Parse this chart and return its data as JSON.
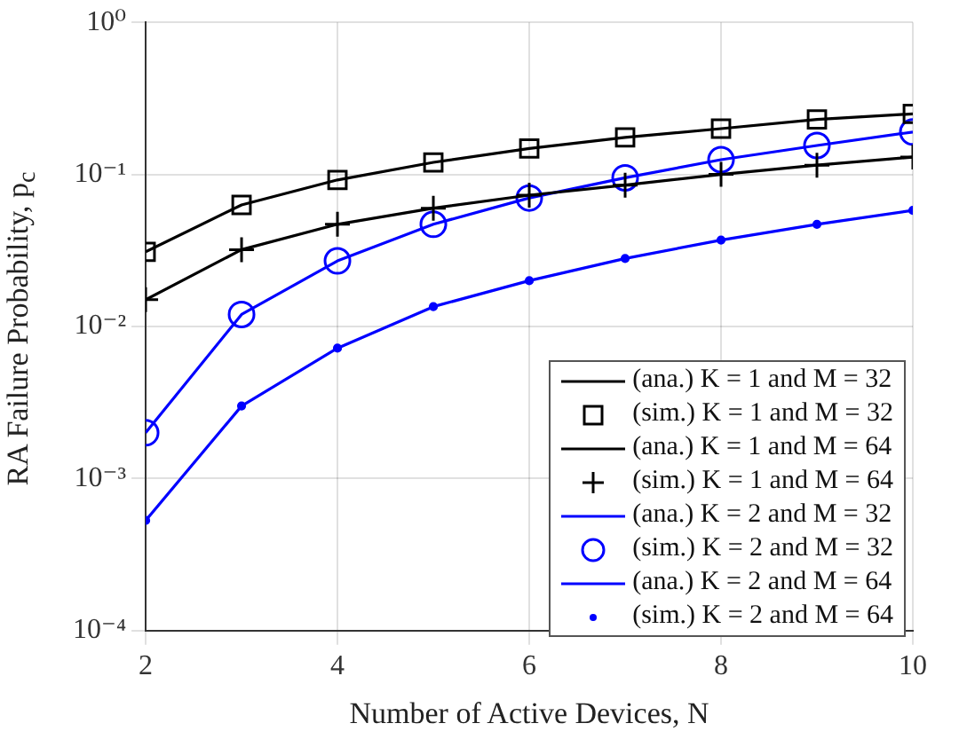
{
  "chart_data": {
    "type": "line",
    "xlabel": "Number of Active Devices, N",
    "ylabel": "RA Failure Probability, p$_{c}$",
    "x": [
      2,
      3,
      4,
      5,
      6,
      7,
      8,
      9,
      10
    ],
    "xlim": [
      2,
      10
    ],
    "xticks": [
      2,
      4,
      6,
      8,
      10
    ],
    "ylim": [
      0.0001,
      1
    ],
    "yticks": [
      {
        "value": 0.0001,
        "label": "10⁻⁴"
      },
      {
        "value": 0.001,
        "label": "10⁻³"
      },
      {
        "value": 0.01,
        "label": "10⁻²"
      },
      {
        "value": 0.1,
        "label": "10⁻¹"
      },
      {
        "value": 1,
        "label": "10⁰"
      }
    ],
    "log": "y",
    "grid": true,
    "legend": "bottom right",
    "line_style": "solid",
    "series": [
      {
        "name": "(ana.) K = 1 and M = 32",
        "type": "line",
        "marker": "none",
        "color": "#000000",
        "values": [
          0.031,
          0.063,
          0.092,
          0.12,
          0.148,
          0.175,
          0.2,
          0.23,
          0.25
        ]
      },
      {
        "name": "(sim.) K = 1 and M = 32",
        "type": "scatter",
        "marker": "square",
        "color": "#000000",
        "values": [
          0.031,
          0.063,
          0.092,
          0.12,
          0.148,
          0.175,
          0.2,
          0.23,
          0.25
        ]
      },
      {
        "name": "(ana.) K = 1 and M = 64",
        "type": "line",
        "marker": "none",
        "color": "#000000",
        "values": [
          0.015,
          0.032,
          0.047,
          0.06,
          0.073,
          0.085,
          0.1,
          0.115,
          0.13
        ]
      },
      {
        "name": "(sim.) K = 1 and M = 64",
        "type": "scatter",
        "marker": "cross",
        "color": "#000000",
        "values": [
          0.015,
          0.032,
          0.047,
          0.06,
          0.073,
          0.085,
          0.1,
          0.115,
          0.13
        ]
      },
      {
        "name": "(ana.) K = 2 and M = 32",
        "type": "line",
        "marker": "none",
        "color": "#0000ff",
        "values": [
          0.002,
          0.012,
          0.027,
          0.047,
          0.07,
          0.095,
          0.125,
          0.155,
          0.19
        ]
      },
      {
        "name": "(sim.) K = 2 and M = 32",
        "type": "scatter",
        "marker": "circle",
        "color": "#0000ff",
        "values": [
          0.002,
          0.012,
          0.027,
          0.047,
          0.07,
          0.095,
          0.125,
          0.155,
          0.19
        ]
      },
      {
        "name": "(ana.) K = 2 and M = 64",
        "type": "line",
        "marker": "none",
        "color": "#0000ff",
        "values": [
          0.00053,
          0.003,
          0.0072,
          0.0135,
          0.02,
          0.028,
          0.037,
          0.047,
          0.058
        ]
      },
      {
        "name": "(sim.) K = 2 and M = 64",
        "type": "scatter",
        "marker": "dot",
        "color": "#0000ff",
        "values": [
          0.00053,
          0.003,
          0.0072,
          0.0135,
          0.02,
          0.028,
          0.037,
          0.047,
          0.058
        ]
      }
    ]
  }
}
